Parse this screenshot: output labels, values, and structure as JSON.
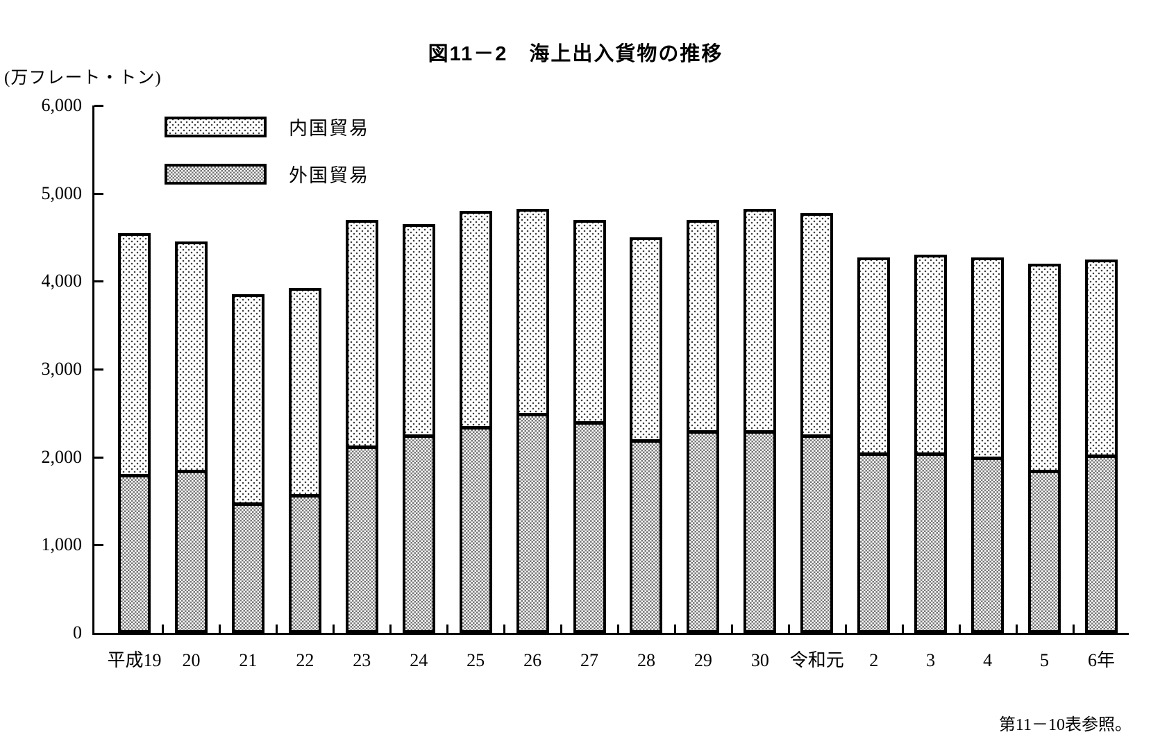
{
  "page": {
    "footnote": "第11－10表参照。"
  },
  "chart_data": {
    "type": "bar",
    "stacked": true,
    "title": "図11－2　海上出入貨物の推移",
    "unit_label": "(万フレート・トン)",
    "xlabel": "",
    "ylabel": "万フレート・トン",
    "ylim": [
      0,
      6000
    ],
    "ytick_interval": 1000,
    "ytick_labels": [
      "0",
      "1,000",
      "2,000",
      "3,000",
      "4,000",
      "5,000",
      "6,000"
    ],
    "grid": false,
    "legend_position": "top-left-inside",
    "categories": [
      "平成19",
      "20",
      "21",
      "22",
      "23",
      "24",
      "25",
      "26",
      "27",
      "28",
      "29",
      "30",
      "令和元",
      "2",
      "3",
      "4",
      "5",
      "6年"
    ],
    "series": [
      {
        "name": "外国貿易",
        "pattern": "gray-checker",
        "values": [
          1825,
          1875,
          1500,
          1600,
          2150,
          2275,
          2375,
          2525,
          2425,
          2225,
          2325,
          2325,
          2275,
          2075,
          2075,
          2025,
          1875,
          2050
        ]
      },
      {
        "name": "内国貿易",
        "pattern": "light-dots",
        "values": [
          2725,
          2575,
          2350,
          2325,
          2550,
          2375,
          2425,
          2300,
          2275,
          2275,
          2375,
          2500,
          2500,
          2200,
          2225,
          2250,
          2325,
          2200
        ]
      }
    ],
    "totals": [
      4550,
      4450,
      3850,
      3925,
      4700,
      4650,
      4800,
      4825,
      4700,
      4500,
      4700,
      4825,
      4775,
      4275,
      4300,
      4275,
      4200,
      4250
    ],
    "legend": [
      {
        "label": "内国貿易"
      },
      {
        "label": "外国貿易"
      }
    ],
    "colors": {
      "ink": "#000000",
      "foreign_checker": "#777777",
      "domestic_dot": "#3a3a3a",
      "background": "#ffffff"
    }
  }
}
